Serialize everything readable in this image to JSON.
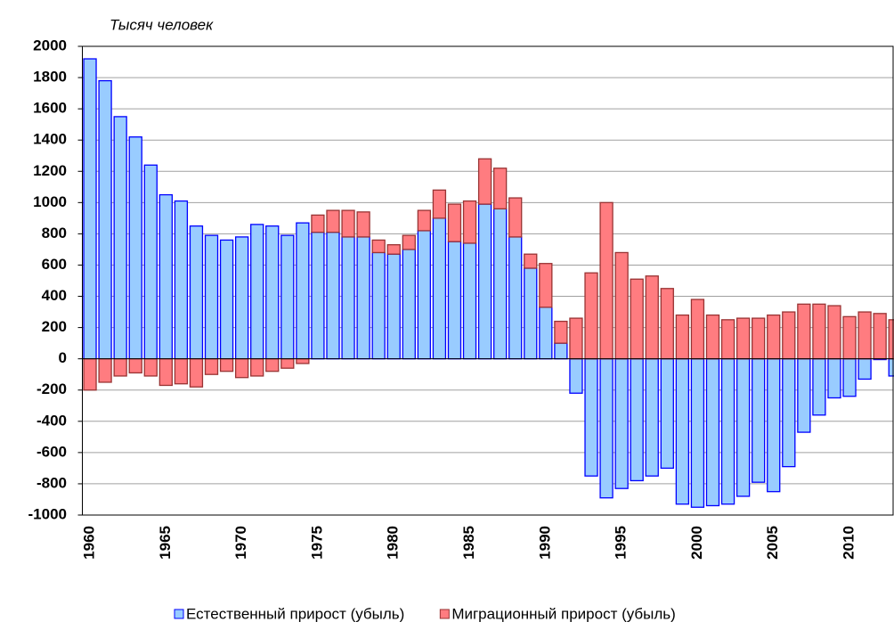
{
  "chart_data": {
    "type": "stacked-bar",
    "y_label": "Тысяч человек",
    "categories": [
      "1960",
      null,
      null,
      null,
      null,
      "1965",
      null,
      null,
      null,
      null,
      "1970",
      null,
      null,
      null,
      null,
      "1975",
      null,
      null,
      null,
      null,
      "1980",
      null,
      null,
      null,
      null,
      "1985",
      null,
      null,
      null,
      null,
      "1990",
      null,
      null,
      null,
      null,
      "1995",
      null,
      null,
      null,
      null,
      "2000",
      null,
      null,
      null,
      null,
      "2005",
      null,
      null,
      null,
      null,
      "2010",
      null,
      null,
      null
    ],
    "series": [
      {
        "name": "Естественный прирост (убыль)",
        "color": "#99ccff",
        "edge": "#0000ff",
        "values": [
          1920,
          1780,
          1550,
          1420,
          1240,
          1050,
          1010,
          850,
          790,
          760,
          780,
          860,
          850,
          790,
          870,
          810,
          810,
          780,
          780,
          680,
          670,
          700,
          820,
          900,
          750,
          740,
          990,
          960,
          780,
          580,
          330,
          100,
          -220,
          -750,
          -890,
          -830,
          -780,
          -750,
          -700,
          -930,
          -950,
          -940,
          -930,
          -880,
          -790,
          -850,
          -690,
          -470,
          -360,
          -250,
          -240,
          -130,
          -5,
          -110
        ]
      },
      {
        "name": "Миграционный прирост (убыль)",
        "color": "#ff7c80",
        "edge": "#993333",
        "values": [
          -200,
          -150,
          -110,
          -90,
          -110,
          -170,
          -160,
          -180,
          -100,
          -80,
          -120,
          -110,
          -80,
          -60,
          -30,
          110,
          140,
          170,
          160,
          80,
          60,
          90,
          130,
          180,
          240,
          270,
          290,
          260,
          250,
          90,
          280,
          140,
          260,
          550,
          1000,
          680,
          510,
          530,
          450,
          280,
          380,
          280,
          250,
          260,
          260,
          280,
          300,
          350,
          350,
          340,
          270,
          300,
          290,
          250
        ]
      }
    ],
    "ylim": [
      -1000,
      2000
    ],
    "yticks": [
      -1000,
      -800,
      -600,
      -400,
      -200,
      0,
      200,
      400,
      600,
      800,
      1000,
      1200,
      1400,
      1600,
      1800,
      2000
    ],
    "grid": true
  }
}
